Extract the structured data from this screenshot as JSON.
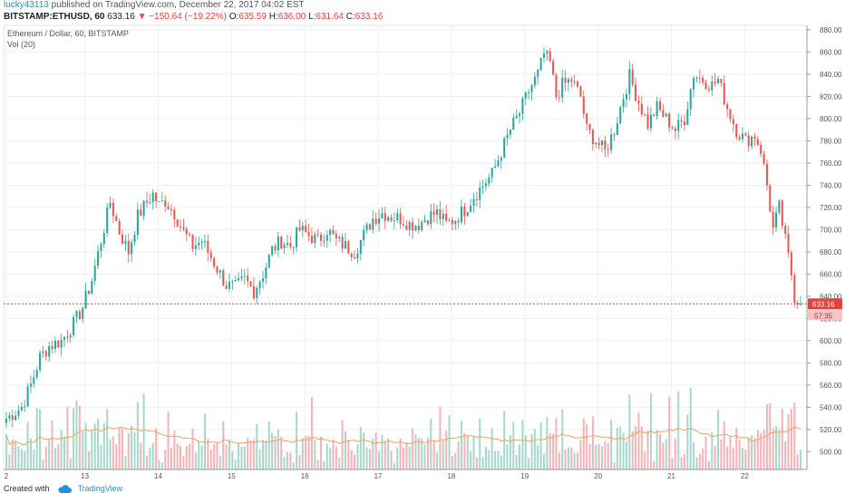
{
  "header": {
    "user": "lucky43113",
    "published": "published on TradingView.com, December 22, 2017 04:02 EST",
    "symbol": "BITSTAMP:ETHUSD, 60",
    "last": "633.16",
    "change_arrow": "▼",
    "change": "−150.64 (−19.22%)",
    "o_label": "O:",
    "o_value": "635.59",
    "h_label": "H:",
    "h_value": "636.00",
    "l_label": "L:",
    "l_value": "631.64",
    "c_label": "C:",
    "c_value": "633.16"
  },
  "overlay": {
    "title": "Ethereum / Dollar, 60, BITSTAMP",
    "vol": "Vol (20)"
  },
  "price_label": "633.16",
  "countdown_label": "57:35",
  "footer": {
    "created": "Created with",
    "brand": "TradingView"
  },
  "colors": {
    "up": "#26a69a",
    "down": "#ef5350",
    "vol_up": "#a8d8cd",
    "vol_down": "#f5b3b8",
    "ma": "#f0a35e",
    "price_line": "#e0443c"
  },
  "chart_data": {
    "type": "candlestick",
    "x_axis": {
      "ticks": [
        "2",
        "13",
        "14",
        "15",
        "16",
        "17",
        "18",
        "19",
        "20",
        "21",
        "22"
      ]
    },
    "y_axis": {
      "range": [
        484,
        884
      ],
      "ticks": [
        "500.00",
        "520.00",
        "540.00",
        "560.00",
        "580.00",
        "600.00",
        "620.00",
        "640.00",
        "660.00",
        "680.00",
        "700.00",
        "720.00",
        "740.00",
        "760.00",
        "780.00",
        "800.00",
        "820.00",
        "840.00",
        "860.00",
        "880.00"
      ]
    },
    "grid": true,
    "price_anchors": [
      [
        0,
        530
      ],
      [
        5,
        540
      ],
      [
        8,
        560
      ],
      [
        11,
        585
      ],
      [
        14,
        595
      ],
      [
        18,
        600
      ],
      [
        22,
        615
      ],
      [
        25,
        630
      ],
      [
        28,
        655
      ],
      [
        31,
        690
      ],
      [
        34,
        725
      ],
      [
        37,
        698
      ],
      [
        40,
        680
      ],
      [
        43,
        712
      ],
      [
        46,
        725
      ],
      [
        48,
        732
      ],
      [
        50,
        722
      ],
      [
        52,
        726
      ],
      [
        55,
        715
      ],
      [
        58,
        698
      ],
      [
        61,
        685
      ],
      [
        64,
        690
      ],
      [
        67,
        675
      ],
      [
        70,
        660
      ],
      [
        72,
        650
      ],
      [
        75,
        648
      ],
      [
        78,
        655
      ],
      [
        81,
        645
      ],
      [
        84,
        660
      ],
      [
        87,
        682
      ],
      [
        90,
        690
      ],
      [
        93,
        685
      ],
      [
        96,
        700
      ],
      [
        99,
        695
      ],
      [
        102,
        690
      ],
      [
        105,
        700
      ],
      [
        108,
        690
      ],
      [
        111,
        685
      ],
      [
        114,
        680
      ],
      [
        117,
        695
      ],
      [
        120,
        710
      ],
      [
        123,
        715
      ],
      [
        126,
        712
      ],
      [
        129,
        710
      ],
      [
        132,
        705
      ],
      [
        135,
        705
      ],
      [
        138,
        712
      ],
      [
        141,
        715
      ],
      [
        144,
        705
      ],
      [
        147,
        710
      ],
      [
        150,
        718
      ],
      [
        153,
        730
      ],
      [
        156,
        740
      ],
      [
        159,
        750
      ],
      [
        162,
        770
      ],
      [
        165,
        790
      ],
      [
        168,
        805
      ],
      [
        171,
        825
      ],
      [
        174,
        840
      ],
      [
        176,
        858
      ],
      [
        178,
        850
      ],
      [
        180,
        820
      ],
      [
        182,
        830
      ],
      [
        185,
        835
      ],
      [
        188,
        820
      ],
      [
        190,
        790
      ],
      [
        193,
        780
      ],
      [
        196,
        770
      ],
      [
        199,
        790
      ],
      [
        202,
        820
      ],
      [
        204,
        838
      ],
      [
        207,
        815
      ],
      [
        210,
        795
      ],
      [
        213,
        810
      ],
      [
        216,
        800
      ],
      [
        219,
        790
      ],
      [
        222,
        800
      ],
      [
        225,
        840
      ],
      [
        228,
        835
      ],
      [
        231,
        830
      ],
      [
        233,
        835
      ],
      [
        236,
        810
      ],
      [
        239,
        790
      ],
      [
        242,
        780
      ],
      [
        245,
        785
      ],
      [
        247,
        772
      ],
      [
        249,
        740
      ],
      [
        251,
        700
      ],
      [
        253,
        720
      ],
      [
        255,
        690
      ],
      [
        257,
        660
      ],
      [
        258,
        640
      ],
      [
        260,
        633
      ]
    ],
    "candle_count": 261,
    "last_price": 633.16
  }
}
